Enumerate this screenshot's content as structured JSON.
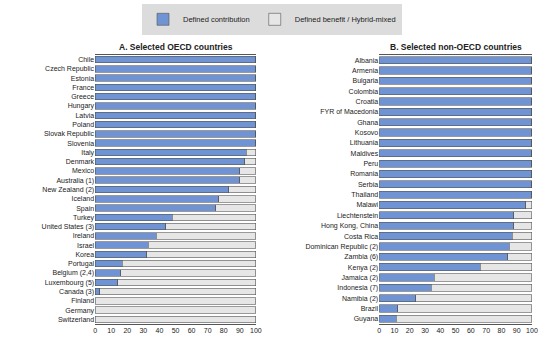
{
  "chart_data": [
    {
      "type": "bar",
      "orientation": "horizontal",
      "stacked": true,
      "grid": false,
      "legend": "top",
      "title": "A. Selected OECD countries",
      "categories": [
        "Chile",
        "Czech Republic",
        "Estonia",
        "France",
        "Greece",
        "Hungary",
        "Latvia",
        "Poland",
        "Slovak Republic",
        "Slovenia",
        "Italy",
        "Denmark",
        "Mexico",
        "Australia (1)",
        "New Zealand (2)",
        "Iceland",
        "Spain",
        "Turkey",
        "United States (3)",
        "Ireland",
        "Israel",
        "Korea",
        "Portugal",
        "Belgium (2,4)",
        "Luxembourg (5)",
        "Canada (3)",
        "Finland",
        "Germany",
        "Switzerland"
      ],
      "series": [
        {
          "name": "Defined contribution",
          "color": "#6f93d3",
          "values": [
            100,
            100,
            100,
            100,
            100,
            100,
            100,
            100,
            100,
            100,
            94,
            93,
            90,
            90,
            83,
            77,
            75,
            48,
            44,
            38,
            33,
            32,
            17,
            16,
            14,
            3,
            0,
            0,
            0
          ]
        },
        {
          "name": "Defined benefit / Hybrid-mixed",
          "color": "#e6e6e6",
          "values": [
            0,
            0,
            0,
            0,
            0,
            0,
            0,
            0,
            0,
            0,
            6,
            7,
            10,
            10,
            17,
            23,
            25,
            52,
            56,
            62,
            67,
            68,
            83,
            84,
            86,
            97,
            100,
            100,
            100
          ]
        }
      ],
      "xlim": [
        0,
        100
      ],
      "xticks": [
        0,
        10,
        20,
        30,
        40,
        50,
        60,
        70,
        80,
        90,
        100
      ]
    },
    {
      "type": "bar",
      "orientation": "horizontal",
      "stacked": true,
      "grid": false,
      "legend": "top",
      "title": "B. Selected non-OECD countries",
      "categories": [
        "Albania",
        "Armenia",
        "Bulgaria",
        "Colombia",
        "Croatia",
        "FYR of Macedonia",
        "Ghana",
        "Kosovo",
        "Lithuania",
        "Maldives",
        "Peru",
        "Romania",
        "Serbia",
        "Thailand",
        "Malawi",
        "Liechtenstein",
        "Hong Kong, China",
        "Costa Rica",
        "Dominican Republic (2)",
        "Zambia (6)",
        "Kenya (2)",
        "Jamaica (2)",
        "Indonesia (7)",
        "Namibia (2)",
        "Brazil",
        "Guyana"
      ],
      "series": [
        {
          "name": "Defined contribution",
          "color": "#6f93d3",
          "values": [
            100,
            100,
            100,
            100,
            100,
            100,
            100,
            100,
            100,
            100,
            100,
            100,
            100,
            100,
            96,
            88,
            88,
            87,
            85,
            84,
            66,
            36,
            34,
            24,
            12,
            11
          ]
        },
        {
          "name": "Defined benefit / Hybrid-mixed",
          "color": "#e6e6e6",
          "values": [
            0,
            0,
            0,
            0,
            0,
            0,
            0,
            0,
            0,
            0,
            0,
            0,
            0,
            0,
            4,
            12,
            12,
            13,
            15,
            16,
            34,
            64,
            66,
            76,
            88,
            89
          ]
        }
      ],
      "xlim": [
        0,
        100
      ],
      "xticks": [
        0,
        10,
        20,
        30,
        40,
        50,
        60,
        70,
        80,
        90,
        100
      ]
    }
  ]
}
